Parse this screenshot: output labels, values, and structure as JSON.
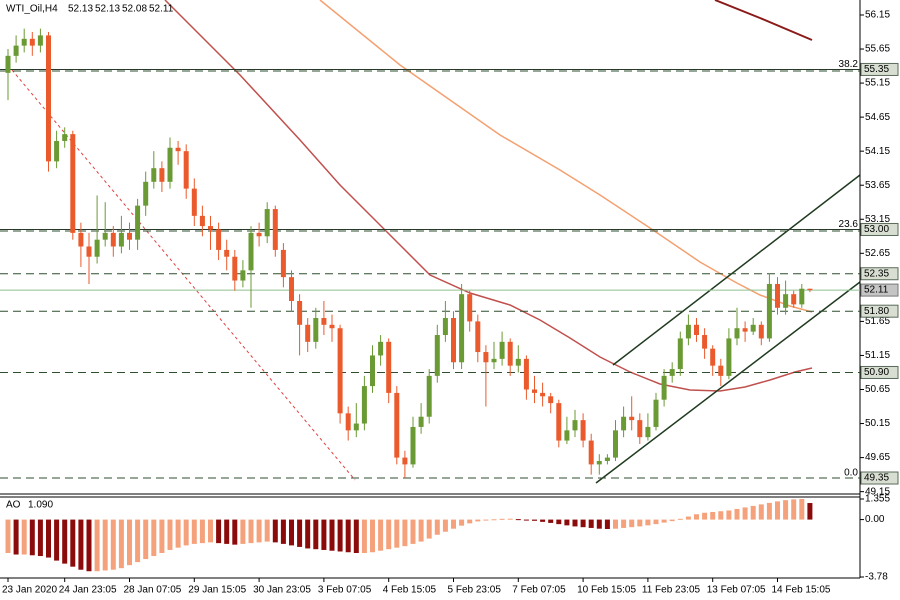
{
  "chart_data": [
    {
      "type": "candlestick",
      "title": "WTI_Oil,H4",
      "readout": [
        52.13,
        52.13,
        52.08,
        52.11
      ],
      "categories": [
        "23 Jan 2020",
        null,
        null,
        null,
        null,
        null,
        null,
        "24 Jan 23:05",
        null,
        null,
        null,
        null,
        null,
        null,
        null,
        "28 Jan 07:05",
        null,
        null,
        null,
        null,
        null,
        null,
        null,
        "29 Jan 15:05",
        null,
        null,
        null,
        null,
        null,
        null,
        null,
        "30 Jan 23:05",
        null,
        null,
        null,
        null,
        null,
        null,
        null,
        "3 Feb 07:05",
        null,
        null,
        null,
        null,
        null,
        null,
        null,
        "4 Feb 15:05",
        null,
        null,
        null,
        null,
        null,
        null,
        null,
        "5 Feb 23:05",
        null,
        null,
        null,
        null,
        null,
        null,
        null,
        "7 Feb 07:05",
        null,
        null,
        null,
        null,
        null,
        null,
        null,
        "10 Feb 15:05",
        null,
        null,
        null,
        null,
        null,
        null,
        null,
        "11 Feb 23:05",
        null,
        null,
        null,
        null,
        null,
        null,
        null,
        "13 Feb 07:05",
        null,
        null,
        null,
        null,
        null,
        null,
        null,
        "14 Feb 15:05",
        null,
        null,
        null,
        null
      ],
      "open": [
        55.3,
        55.55,
        55.7,
        55.8,
        55.7,
        55.85,
        54.0,
        54.3,
        54.4,
        52.95,
        52.75,
        52.6,
        52.85,
        52.95,
        52.75,
        52.95,
        52.85,
        53.35,
        53.7,
        53.9,
        53.7,
        54.2,
        54.15,
        53.6,
        53.2,
        53.05,
        53.0,
        52.7,
        52.6,
        52.25,
        52.4,
        52.95,
        52.9,
        53.3,
        52.7,
        52.3,
        51.95,
        51.6,
        51.35,
        51.7,
        51.6,
        51.55,
        50.3,
        50.05,
        50.15,
        50.7,
        51.15,
        51.35,
        50.6,
        49.65,
        49.55,
        50.1,
        50.25,
        50.85,
        51.45,
        51.7,
        51.05,
        52.05,
        51.65,
        51.2,
        51.05,
        51.1,
        51.35,
        51.0,
        51.1,
        50.65,
        50.6,
        50.55,
        50.45,
        49.9,
        50.05,
        50.2,
        49.9,
        49.55,
        49.6,
        49.65,
        50.05,
        50.25,
        50.2,
        49.95,
        50.1,
        50.5,
        50.85,
        50.95,
        51.4,
        51.6,
        51.45,
        51.25,
        51.0,
        50.85,
        51.4,
        51.55,
        51.5,
        51.6,
        51.4,
        52.2,
        51.85,
        52.05,
        51.9,
        52.13
      ],
      "high": [
        55.65,
        55.85,
        55.95,
        55.9,
        55.95,
        55.9,
        54.45,
        54.5,
        54.45,
        53.1,
        52.95,
        53.5,
        53.4,
        53.05,
        53.2,
        53.1,
        53.45,
        53.85,
        54.15,
        54.0,
        54.35,
        54.3,
        54.25,
        53.75,
        53.35,
        53.2,
        53.1,
        52.85,
        52.7,
        52.55,
        53.05,
        53.1,
        53.4,
        53.35,
        52.8,
        52.4,
        52.05,
        51.7,
        51.85,
        51.95,
        51.75,
        51.6,
        50.4,
        50.45,
        50.85,
        51.3,
        51.45,
        51.4,
        50.7,
        49.75,
        50.25,
        50.45,
        50.95,
        51.6,
        51.95,
        51.8,
        52.2,
        52.1,
        51.75,
        51.3,
        51.35,
        51.5,
        51.4,
        51.3,
        51.15,
        50.85,
        50.75,
        50.6,
        50.5,
        50.25,
        50.35,
        50.3,
        50.0,
        49.7,
        49.7,
        50.2,
        50.4,
        50.55,
        50.3,
        50.3,
        50.6,
        50.95,
        51.05,
        51.5,
        51.75,
        51.7,
        51.55,
        51.3,
        51.1,
        51.55,
        51.85,
        51.65,
        51.7,
        51.65,
        52.35,
        52.3,
        52.25,
        52.1,
        52.2,
        52.13
      ],
      "low": [
        54.9,
        55.45,
        55.6,
        55.55,
        55.6,
        53.85,
        53.9,
        54.2,
        52.85,
        52.45,
        52.2,
        52.5,
        52.75,
        52.6,
        52.65,
        52.7,
        52.7,
        53.2,
        53.6,
        53.55,
        53.6,
        53.95,
        53.45,
        53.05,
        52.9,
        52.7,
        52.55,
        52.4,
        52.1,
        52.15,
        51.85,
        52.75,
        52.8,
        52.6,
        52.15,
        51.8,
        51.15,
        51.2,
        51.25,
        51.45,
        51.35,
        50.15,
        49.9,
        49.95,
        50.05,
        50.6,
        51.0,
        50.45,
        49.55,
        49.35,
        49.5,
        50.0,
        50.15,
        50.75,
        51.35,
        50.95,
        50.95,
        51.5,
        51.05,
        50.4,
        50.95,
        51.0,
        50.85,
        50.9,
        50.5,
        50.45,
        50.4,
        50.3,
        49.8,
        49.85,
        49.95,
        49.8,
        49.4,
        49.4,
        49.55,
        49.6,
        49.95,
        50.05,
        49.85,
        49.9,
        50.05,
        50.4,
        50.75,
        50.85,
        51.3,
        51.35,
        51.1,
        50.85,
        50.7,
        50.8,
        51.3,
        51.35,
        51.45,
        51.3,
        51.35,
        51.75,
        51.75,
        51.85,
        51.85,
        52.08
      ],
      "close": [
        55.55,
        55.7,
        55.8,
        55.7,
        55.85,
        54.0,
        54.3,
        54.4,
        52.95,
        52.75,
        52.6,
        52.85,
        52.95,
        52.75,
        52.95,
        52.85,
        53.35,
        53.7,
        53.9,
        53.7,
        54.2,
        54.15,
        53.6,
        53.2,
        53.05,
        53.0,
        52.7,
        52.6,
        52.25,
        52.4,
        52.95,
        52.9,
        53.3,
        52.7,
        52.3,
        51.95,
        51.6,
        51.35,
        51.7,
        51.6,
        51.55,
        50.3,
        50.05,
        50.15,
        50.7,
        51.15,
        51.35,
        50.6,
        49.65,
        49.55,
        50.1,
        50.25,
        50.85,
        51.45,
        51.7,
        51.05,
        52.05,
        51.65,
        51.2,
        51.05,
        51.1,
        51.35,
        51.0,
        51.1,
        50.65,
        50.6,
        50.55,
        50.45,
        49.9,
        50.05,
        50.2,
        49.9,
        49.55,
        49.6,
        49.65,
        50.05,
        50.25,
        50.2,
        49.95,
        50.1,
        50.5,
        50.85,
        50.95,
        51.4,
        51.6,
        51.45,
        51.25,
        51.0,
        50.85,
        51.4,
        51.55,
        51.5,
        51.6,
        51.4,
        52.2,
        51.85,
        52.05,
        51.9,
        52.13,
        52.11
      ],
      "up_color": "#6a9a33",
      "down_color": "#ea5a2c",
      "ylim": [
        49.13,
        56.37
      ],
      "yticks": [
        56.15,
        55.65,
        55.15,
        54.65,
        54.15,
        53.65,
        53.15,
        52.65,
        51.65,
        51.15,
        50.65,
        50.15,
        49.65,
        49.15
      ],
      "levels": [
        55.35,
        {
          "value": 53,
          "label": "53.00"
        },
        52.35,
        {
          "value": 51.8,
          "label": "51.80"
        },
        {
          "value": 50.9,
          "label": "50.90"
        },
        49.35
      ],
      "bid": 52.11,
      "fib_levels": [
        {
          "value": 55.35,
          "label": "38.2"
        },
        {
          "value": 53,
          "label": "23.6"
        },
        {
          "value": 49.35,
          "label": "0.0"
        }
      ]
    },
    {
      "type": "bar",
      "name": "AO",
      "readout": {
        "value": 1.09,
        "label": "1.090"
      },
      "values": [
        -2.2,
        -2.3,
        -2.3,
        -2.35,
        -2.4,
        -2.5,
        -2.7,
        -2.9,
        -3.1,
        -3.3,
        -3.4,
        -3.4,
        -3.35,
        -3.3,
        -3.2,
        -3.0,
        -2.8,
        -2.6,
        -2.4,
        -2.2,
        -2.0,
        -1.85,
        -1.7,
        -1.6,
        -1.55,
        -1.5,
        -1.55,
        -1.6,
        -1.65,
        -1.6,
        -1.55,
        -1.5,
        -1.45,
        -1.5,
        -1.6,
        -1.7,
        -1.8,
        -1.9,
        -1.95,
        -2.0,
        -2.05,
        -2.1,
        -2.15,
        -2.2,
        -2.2,
        -2.15,
        -2.05,
        -1.95,
        -1.85,
        -1.75,
        -1.6,
        -1.45,
        -1.25,
        -1.0,
        -0.8,
        -0.6,
        -0.4,
        -0.25,
        -0.12,
        -0.05,
        0.02,
        0.05,
        0.06,
        0.03,
        -0.02,
        -0.08,
        -0.15,
        -0.22,
        -0.3,
        -0.38,
        -0.45,
        -0.5,
        -0.55,
        -0.6,
        -0.62,
        -0.6,
        -0.55,
        -0.5,
        -0.45,
        -0.38,
        -0.3,
        -0.2,
        -0.1,
        0.05,
        0.2,
        0.35,
        0.45,
        0.5,
        0.55,
        0.6,
        0.7,
        0.8,
        0.9,
        1.0,
        1.1,
        1.2,
        1.28,
        1.33,
        1.355,
        1.09
      ],
      "up_color": "#f5a27c",
      "down_color": "#8b0a0a",
      "ylim": [
        -3.78,
        1.355
      ],
      "yticks": [
        1.355,
        {
          "value": 0,
          "label": "0.00"
        },
        -3.78
      ]
    }
  ]
}
